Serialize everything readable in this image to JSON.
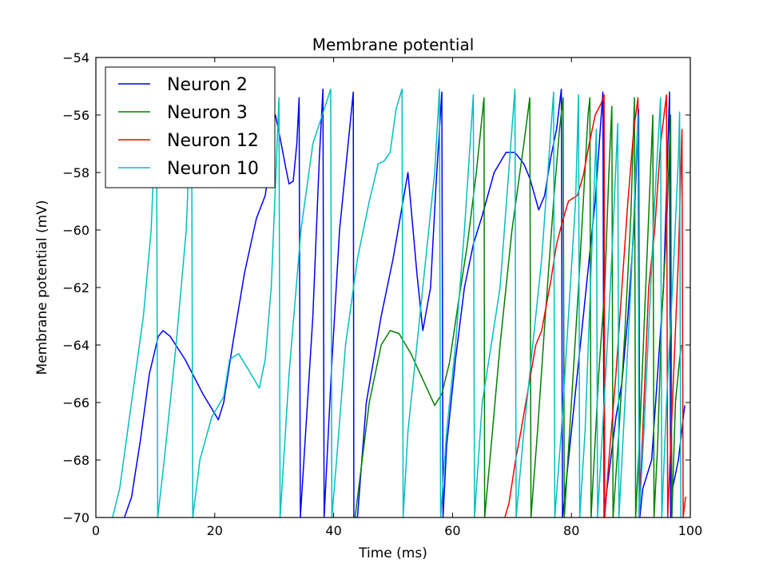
{
  "chart_data": {
    "type": "line",
    "title": "Membrane potential",
    "xlabel": "Time (ms)",
    "ylabel": "Membrane potential (mV)",
    "xlim": [
      0,
      100
    ],
    "ylim": [
      -70,
      -54
    ],
    "xticks": [
      0,
      20,
      40,
      60,
      80,
      100
    ],
    "yticks": [
      -70,
      -68,
      -66,
      -64,
      -62,
      -60,
      -58,
      -56,
      -54
    ],
    "grid": false,
    "legend_position": "top-left",
    "series": [
      {
        "name": "Neuron 2",
        "color": "#0000ff",
        "points": [
          [
            4.8,
            -70
          ],
          [
            6,
            -69.3
          ],
          [
            7.5,
            -67.3
          ],
          [
            9,
            -65
          ],
          [
            10.5,
            -63.7
          ],
          [
            11.3,
            -63.5
          ],
          [
            12.5,
            -63.7
          ],
          [
            15,
            -64.5
          ],
          [
            18,
            -65.7
          ],
          [
            20.6,
            -66.6
          ],
          [
            21.5,
            -66
          ],
          [
            23,
            -64
          ],
          [
            25,
            -61.5
          ],
          [
            27,
            -59.6
          ],
          [
            28.5,
            -58.8
          ],
          [
            29.3,
            -57.6
          ],
          [
            29.7,
            -56.3
          ],
          [
            30.2,
            -56
          ],
          [
            31,
            -56.8
          ],
          [
            32,
            -57.9
          ],
          [
            32.5,
            -58.4
          ],
          [
            33.2,
            -58.3
          ],
          [
            33.8,
            -57
          ],
          [
            34.2,
            -55.4
          ],
          [
            34.4,
            -70
          ],
          [
            35,
            -68
          ],
          [
            36.5,
            -63
          ],
          [
            37.6,
            -57.5
          ],
          [
            38.2,
            -55.1
          ],
          [
            38.4,
            -70
          ],
          [
            39.6,
            -65
          ],
          [
            41,
            -60
          ],
          [
            43.3,
            -55.2
          ],
          [
            43.4,
            -70
          ],
          [
            44,
            -70
          ],
          [
            45.5,
            -66
          ],
          [
            48,
            -63
          ],
          [
            50,
            -61
          ],
          [
            52.5,
            -58
          ],
          [
            54,
            -61.5
          ],
          [
            55,
            -63.5
          ],
          [
            56.3,
            -62
          ],
          [
            57.2,
            -58.5
          ],
          [
            58.2,
            -55.2
          ],
          [
            58.4,
            -70
          ],
          [
            59,
            -67.5
          ],
          [
            60.5,
            -64.5
          ],
          [
            62,
            -62
          ],
          [
            63.5,
            -60.5
          ],
          [
            65,
            -59.5
          ],
          [
            67,
            -58
          ],
          [
            69,
            -57.3
          ],
          [
            70.5,
            -57.3
          ],
          [
            72,
            -57.7
          ],
          [
            73,
            -58.2
          ],
          [
            74.5,
            -59.3
          ],
          [
            75.5,
            -58.8
          ],
          [
            76.5,
            -57.5
          ],
          [
            77.5,
            -56.5
          ],
          [
            78.3,
            -55.1
          ],
          [
            78.5,
            -70
          ],
          [
            79,
            -69
          ],
          [
            80.5,
            -66
          ],
          [
            82,
            -63
          ],
          [
            83,
            -61
          ],
          [
            84,
            -59
          ],
          [
            85.3,
            -55.2
          ],
          [
            85.5,
            -70
          ],
          [
            86,
            -69
          ],
          [
            87.5,
            -66.5
          ],
          [
            88.5,
            -65.3
          ],
          [
            89.5,
            -63
          ],
          [
            90.5,
            -60
          ],
          [
            91.3,
            -55.8
          ],
          [
            91.5,
            -70
          ],
          [
            92,
            -69
          ],
          [
            93.5,
            -68
          ],
          [
            94.5,
            -65
          ],
          [
            95.5,
            -62
          ],
          [
            96.5,
            -55.2
          ],
          [
            96.7,
            -70
          ],
          [
            97,
            -69
          ],
          [
            98,
            -68
          ],
          [
            99,
            -66.2
          ],
          [
            99.1,
            -66.1
          ]
        ]
      },
      {
        "name": "Neuron 3",
        "color": "#008000",
        "points": [
          [
            43.6,
            -70
          ],
          [
            44.5,
            -68.5
          ],
          [
            46,
            -66
          ],
          [
            48,
            -64
          ],
          [
            49.5,
            -63.5
          ],
          [
            51,
            -63.6
          ],
          [
            53,
            -64.3
          ],
          [
            55,
            -65.2
          ],
          [
            57,
            -66.1
          ],
          [
            58.2,
            -65.7
          ],
          [
            59.5,
            -64.6
          ],
          [
            61,
            -62.5
          ],
          [
            62.5,
            -60.5
          ],
          [
            64,
            -58
          ],
          [
            65.3,
            -55.4
          ],
          [
            65.4,
            -70
          ],
          [
            66.5,
            -67.5
          ],
          [
            68,
            -64
          ],
          [
            70,
            -60
          ],
          [
            72,
            -57
          ],
          [
            73,
            -55.4
          ],
          [
            73.2,
            -70
          ],
          [
            74.3,
            -67
          ],
          [
            75.6,
            -63
          ],
          [
            77,
            -59
          ],
          [
            78,
            -56.5
          ],
          [
            78.6,
            -55.4
          ],
          [
            78.8,
            -70
          ],
          [
            80,
            -66
          ],
          [
            81.2,
            -62
          ],
          [
            82,
            -59
          ],
          [
            82.8,
            -56
          ],
          [
            83.1,
            -55.4
          ],
          [
            83.3,
            -70
          ],
          [
            84.6,
            -65
          ],
          [
            85.6,
            -62
          ],
          [
            86.3,
            -58
          ],
          [
            86.8,
            -55.7
          ],
          [
            87,
            -70
          ],
          [
            88,
            -67
          ],
          [
            89,
            -63.5
          ],
          [
            90,
            -59.5
          ],
          [
            90.6,
            -55.4
          ],
          [
            90.8,
            -70
          ],
          [
            91.5,
            -67
          ],
          [
            92.5,
            -62
          ],
          [
            93.7,
            -56
          ],
          [
            93.9,
            -70
          ],
          [
            94.5,
            -67.5
          ],
          [
            95.2,
            -63
          ],
          [
            96,
            -60
          ],
          [
            96.7,
            -56
          ],
          [
            96.9,
            -70
          ],
          [
            97.5,
            -66
          ],
          [
            98.2,
            -64.5
          ],
          [
            98.5,
            -64
          ]
        ]
      },
      {
        "name": "Neuron 12",
        "color": "#ff0000",
        "points": [
          [
            68.8,
            -70
          ],
          [
            69.5,
            -69.5
          ],
          [
            70.6,
            -68
          ],
          [
            71.5,
            -67
          ],
          [
            73,
            -65.2
          ],
          [
            74,
            -64
          ],
          [
            75,
            -63.5
          ],
          [
            76.5,
            -61.8
          ],
          [
            77.5,
            -60.5
          ],
          [
            78.5,
            -59.7
          ],
          [
            79.5,
            -59
          ],
          [
            81,
            -58.8
          ],
          [
            82,
            -58.1
          ],
          [
            83,
            -57
          ],
          [
            84,
            -56
          ],
          [
            85,
            -55.6
          ],
          [
            85.5,
            -55.3
          ],
          [
            85.6,
            -70
          ],
          [
            86.3,
            -68
          ],
          [
            87.5,
            -65
          ],
          [
            88.5,
            -62
          ],
          [
            89.5,
            -59
          ],
          [
            90.5,
            -56.5
          ],
          [
            91.2,
            -55.4
          ],
          [
            91.4,
            -70
          ],
          [
            92,
            -67
          ],
          [
            93,
            -62
          ],
          [
            94,
            -60
          ],
          [
            95,
            -57
          ],
          [
            96,
            -55.3
          ],
          [
            96.2,
            -70
          ],
          [
            97,
            -66
          ],
          [
            98,
            -61
          ],
          [
            98.6,
            -56.5
          ],
          [
            98.8,
            -70
          ],
          [
            99.2,
            -69.3
          ],
          [
            99.3,
            -69.3
          ]
        ]
      },
      {
        "name": "Neuron 10",
        "color": "#00bfbf",
        "points": [
          [
            2.8,
            -70
          ],
          [
            4,
            -69
          ],
          [
            6,
            -66
          ],
          [
            8,
            -63
          ],
          [
            9.3,
            -60
          ],
          [
            10.2,
            -55.4
          ],
          [
            10.4,
            -70
          ],
          [
            11.5,
            -68
          ],
          [
            13.5,
            -64
          ],
          [
            15.2,
            -60
          ],
          [
            16.1,
            -55.4
          ],
          [
            16.3,
            -70
          ],
          [
            17.5,
            -68
          ],
          [
            19.5,
            -66.5
          ],
          [
            21.5,
            -65.8
          ],
          [
            22.5,
            -64.5
          ],
          [
            24,
            -64.3
          ],
          [
            25.5,
            -64.8
          ],
          [
            27.5,
            -65.5
          ],
          [
            28.5,
            -64.5
          ],
          [
            29.5,
            -62
          ],
          [
            30.3,
            -58
          ],
          [
            30.8,
            -55.4
          ],
          [
            31,
            -70
          ],
          [
            32.5,
            -65
          ],
          [
            34.5,
            -60
          ],
          [
            36.5,
            -57
          ],
          [
            39.5,
            -55.1
          ],
          [
            39.7,
            -70
          ],
          [
            40.5,
            -68
          ],
          [
            42,
            -64
          ],
          [
            44,
            -61
          ],
          [
            46,
            -59
          ],
          [
            47.5,
            -57.7
          ],
          [
            48.5,
            -57.6
          ],
          [
            49.5,
            -57.3
          ],
          [
            50.5,
            -55.8
          ],
          [
            51.5,
            -55.1
          ],
          [
            51.7,
            -70
          ],
          [
            52.5,
            -67
          ],
          [
            54,
            -64
          ],
          [
            55.5,
            -61
          ],
          [
            57,
            -58
          ],
          [
            57.8,
            -55.1
          ],
          [
            58,
            -70
          ],
          [
            59,
            -67
          ],
          [
            60.5,
            -64
          ],
          [
            62,
            -60
          ],
          [
            63.5,
            -55.3
          ],
          [
            63.7,
            -70
          ],
          [
            65,
            -66
          ],
          [
            66.5,
            -64
          ],
          [
            68,
            -62
          ],
          [
            70.5,
            -55.1
          ],
          [
            70.7,
            -70
          ],
          [
            72,
            -67
          ],
          [
            73.5,
            -64
          ],
          [
            75,
            -61
          ],
          [
            77,
            -55.2
          ],
          [
            77.2,
            -70
          ],
          [
            78.3,
            -67
          ],
          [
            79.5,
            -63
          ],
          [
            80.7,
            -59
          ],
          [
            81.2,
            -55.3
          ],
          [
            81.4,
            -70
          ],
          [
            82.3,
            -67
          ],
          [
            83.2,
            -62
          ],
          [
            84.2,
            -56.5
          ],
          [
            84.4,
            -70
          ],
          [
            85.5,
            -66
          ],
          [
            86.3,
            -63
          ],
          [
            87,
            -60
          ],
          [
            87.8,
            -56.3
          ],
          [
            88,
            -70
          ],
          [
            89,
            -66
          ],
          [
            90,
            -62
          ],
          [
            91.2,
            -56
          ],
          [
            91.4,
            -70
          ],
          [
            92.2,
            -67
          ],
          [
            93,
            -63.5
          ],
          [
            94,
            -59
          ],
          [
            95,
            -55.4
          ],
          [
            95.2,
            -70
          ],
          [
            96,
            -66
          ],
          [
            97,
            -62
          ],
          [
            98,
            -57.5
          ],
          [
            98.2,
            -55.9
          ],
          [
            98.4,
            -70
          ]
        ]
      }
    ]
  }
}
